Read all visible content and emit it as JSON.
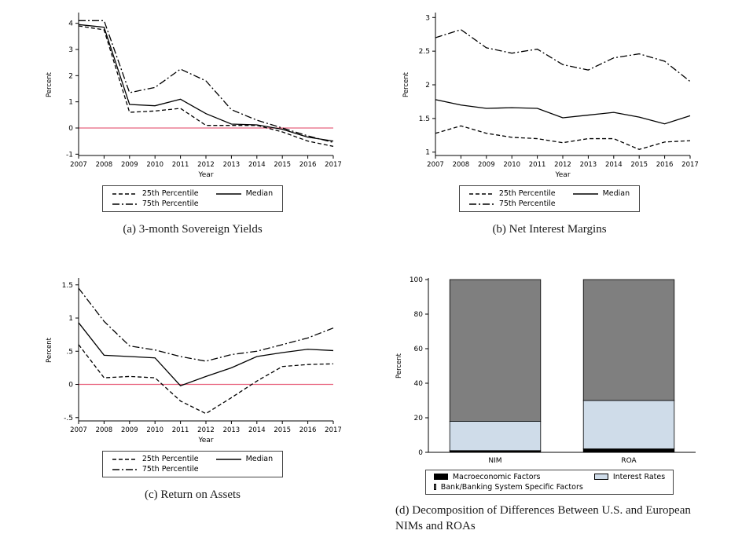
{
  "captions": {
    "a": "(a) 3-month Sovereign Yields",
    "b": "(b) Net Interest Margins",
    "c": "(c) Return on Assets",
    "d": "(d) Decomposition of Differences Between U.S. and European NIMs and ROAs"
  },
  "legend_lines": {
    "p25": "25th Percentile",
    "median": "Median",
    "p75": "75th Percentile"
  },
  "legend_bars": {
    "macro": "Macroeconomic Factors",
    "rates": "Interest Rates",
    "bank": "Bank/Banking System Specific Factors"
  },
  "colors": {
    "line": "#000000",
    "refline": "#e8647f",
    "bar_macro": "#000000",
    "bar_rates": "#cfdce9",
    "bar_bank": "#7f7f7f"
  },
  "chart_data": [
    {
      "id": "a",
      "type": "line",
      "title": "(a) 3-month Sovereign Yields",
      "xlabel": "Year",
      "ylabel": "Percent",
      "x": [
        2007,
        2008,
        2009,
        2010,
        2011,
        2012,
        2013,
        2014,
        2015,
        2016,
        2017
      ],
      "ylim": [
        -1.05,
        4.35
      ],
      "yticks": [
        -1,
        0,
        1,
        2,
        3,
        4
      ],
      "ytick_labels": [
        "-1",
        "0",
        "1",
        "2",
        "3",
        "4"
      ],
      "refline": 0,
      "legend_position": "bottom",
      "grid": false,
      "series": [
        {
          "name": "25th Percentile",
          "dash": "dashed",
          "values": [
            3.9,
            3.75,
            0.6,
            0.65,
            0.75,
            0.1,
            0.1,
            0.1,
            -0.15,
            -0.5,
            -0.7
          ]
        },
        {
          "name": "Median",
          "dash": "solid",
          "values": [
            3.95,
            3.85,
            0.9,
            0.85,
            1.1,
            0.55,
            0.15,
            0.12,
            -0.05,
            -0.35,
            -0.5
          ]
        },
        {
          "name": "75th Percentile",
          "dash": "dashdot",
          "values": [
            4.1,
            4.1,
            1.35,
            1.55,
            2.25,
            1.8,
            0.7,
            0.3,
            0.0,
            -0.3,
            -0.55
          ]
        }
      ]
    },
    {
      "id": "b",
      "type": "line",
      "title": "(b) Net Interest Margins",
      "xlabel": "Year",
      "ylabel": "Percent",
      "x": [
        2007,
        2008,
        2009,
        2010,
        2011,
        2012,
        2013,
        2014,
        2015,
        2016,
        2017
      ],
      "ylim": [
        0.95,
        3.05
      ],
      "yticks": [
        1,
        1.5,
        2,
        2.5,
        3
      ],
      "ytick_labels": [
        "1",
        "1.5",
        "2",
        "2.5",
        "3"
      ],
      "refline": null,
      "legend_position": "bottom",
      "grid": false,
      "series": [
        {
          "name": "25th Percentile",
          "dash": "dashed",
          "values": [
            1.28,
            1.39,
            1.28,
            1.22,
            1.2,
            1.14,
            1.2,
            1.2,
            1.04,
            1.15,
            1.17
          ]
        },
        {
          "name": "Median",
          "dash": "solid",
          "values": [
            1.78,
            1.7,
            1.65,
            1.66,
            1.65,
            1.51,
            1.55,
            1.59,
            1.52,
            1.42,
            1.54
          ]
        },
        {
          "name": "75th Percentile",
          "dash": "dashdot",
          "values": [
            2.7,
            2.82,
            2.55,
            2.47,
            2.53,
            2.3,
            2.22,
            2.4,
            2.46,
            2.35,
            2.05
          ]
        }
      ]
    },
    {
      "id": "c",
      "type": "line",
      "title": "(c) Return on Assets",
      "xlabel": "Year",
      "ylabel": "Percent",
      "x": [
        2007,
        2008,
        2009,
        2010,
        2011,
        2012,
        2013,
        2014,
        2015,
        2016,
        2017
      ],
      "ylim": [
        -0.55,
        1.58
      ],
      "yticks": [
        -0.5,
        0,
        0.5,
        1,
        1.5
      ],
      "ytick_labels": [
        "-.5",
        "0",
        ".5",
        "1",
        "1.5"
      ],
      "refline": 0,
      "legend_position": "bottom",
      "grid": false,
      "series": [
        {
          "name": "25th Percentile",
          "dash": "dashed",
          "values": [
            0.6,
            0.1,
            0.12,
            0.1,
            -0.25,
            -0.44,
            -0.2,
            0.05,
            0.27,
            0.3,
            0.31
          ]
        },
        {
          "name": "Median",
          "dash": "solid",
          "values": [
            0.93,
            0.44,
            0.42,
            0.4,
            -0.02,
            0.12,
            0.25,
            0.42,
            0.48,
            0.53,
            0.51
          ]
        },
        {
          "name": "75th Percentile",
          "dash": "dashdot",
          "values": [
            1.45,
            0.95,
            0.58,
            0.52,
            0.42,
            0.35,
            0.45,
            0.5,
            0.6,
            0.7,
            0.85
          ]
        }
      ]
    },
    {
      "id": "d",
      "type": "stacked_bar",
      "title": "(d) Decomposition of Differences Between U.S. and European NIMs and ROAs",
      "ylabel": "Percent",
      "categories": [
        "NIM",
        "ROA"
      ],
      "ylim": [
        0,
        100
      ],
      "yticks": [
        0,
        20,
        40,
        60,
        80,
        100
      ],
      "legend_position": "bottom",
      "grid": false,
      "series": [
        {
          "name": "Macroeconomic Factors",
          "color_key": "bar_macro",
          "values": [
            1,
            2
          ]
        },
        {
          "name": "Interest Rates",
          "color_key": "bar_rates",
          "values": [
            17,
            28
          ]
        },
        {
          "name": "Bank/Banking System Specific Factors",
          "color_key": "bar_bank",
          "values": [
            82,
            70
          ]
        }
      ]
    }
  ]
}
